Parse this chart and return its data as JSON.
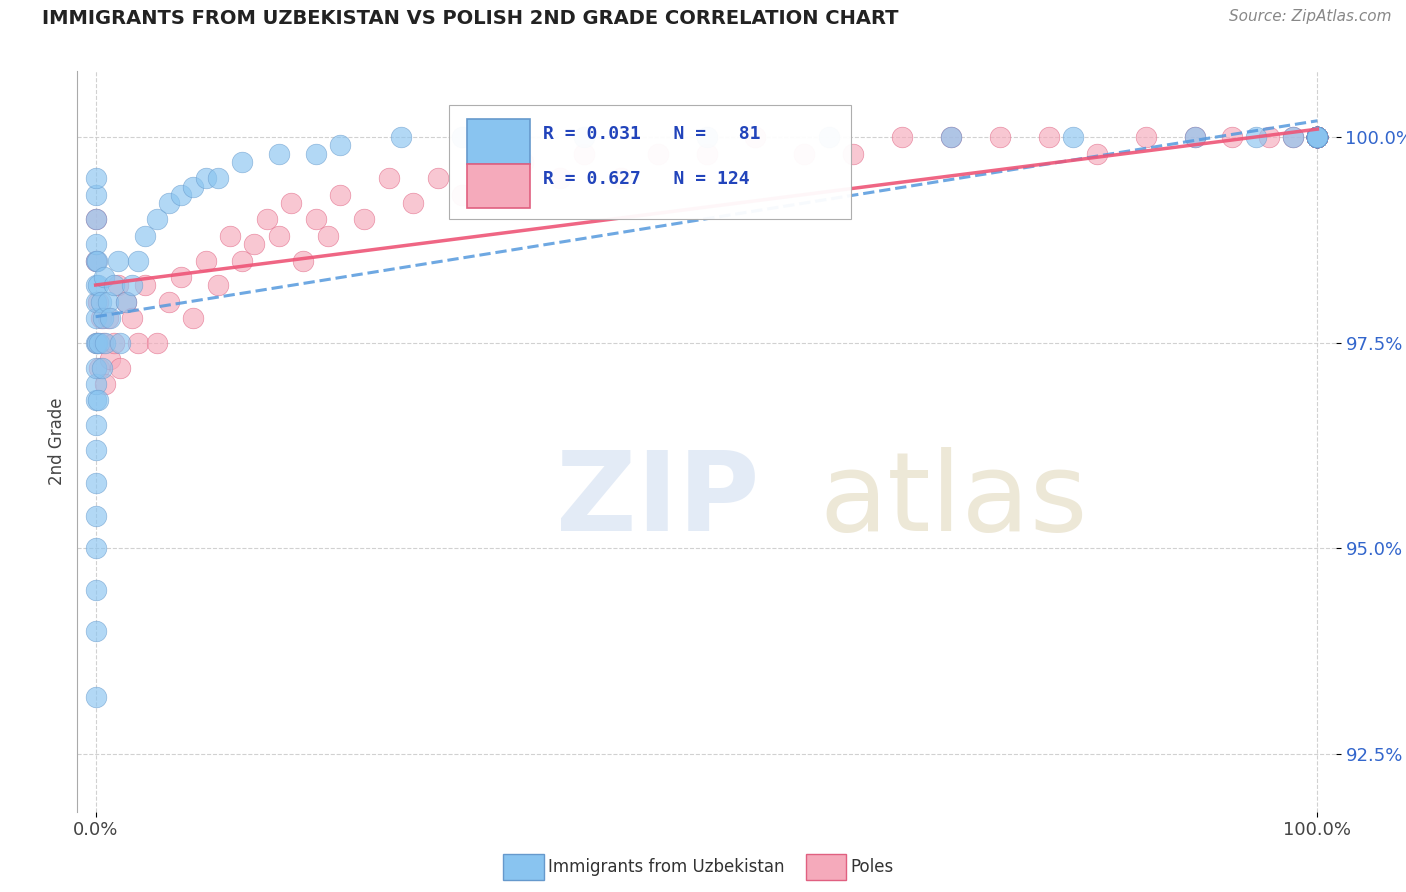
{
  "title": "IMMIGRANTS FROM UZBEKISTAN VS POLISH 2ND GRADE CORRELATION CHART",
  "source_text": "Source: ZipAtlas.com",
  "ylabel": "2nd Grade",
  "y_min": 91.8,
  "y_max": 100.8,
  "x_min": -1.5,
  "x_max": 101.5,
  "color_uzbek": "#89C4F0",
  "color_uzbek_border": "#6699CC",
  "color_poles": "#F5AABB",
  "color_poles_border": "#E06080",
  "color_uzbek_line": "#5599DD",
  "color_poles_line": "#EE5577",
  "background_color": "#ffffff",
  "grid_color": "#cccccc",
  "uzbek_x": [
    0.0,
    0.0,
    0.0,
    0.0,
    0.0,
    0.0,
    0.0,
    0.0,
    0.0,
    0.0,
    0.0,
    0.0,
    0.0,
    0.0,
    0.0,
    0.0,
    0.0,
    0.0,
    0.0,
    0.0,
    0.1,
    0.1,
    0.2,
    0.2,
    0.3,
    0.4,
    0.5,
    0.6,
    0.7,
    0.8,
    1.0,
    1.2,
    1.5,
    1.8,
    2.0,
    2.5,
    3.0,
    3.5,
    4.0,
    5.0,
    6.0,
    7.0,
    8.0,
    9.0,
    10.0,
    12.0,
    15.0,
    18.0,
    20.0,
    25.0,
    30.0,
    40.0,
    50.0,
    60.0,
    70.0,
    80.0,
    90.0,
    95.0,
    98.0,
    100.0,
    100.0,
    100.0,
    100.0,
    100.0,
    100.0,
    100.0,
    100.0,
    100.0,
    100.0,
    100.0,
    100.0,
    100.0,
    100.0,
    100.0,
    100.0,
    100.0,
    100.0,
    100.0,
    100.0,
    100.0,
    100.0
  ],
  "uzbek_y": [
    93.2,
    94.0,
    94.5,
    95.0,
    95.4,
    95.8,
    96.2,
    96.5,
    96.8,
    97.0,
    97.2,
    97.5,
    97.8,
    98.0,
    98.2,
    98.5,
    98.7,
    99.0,
    99.3,
    99.5,
    97.5,
    98.5,
    96.8,
    98.2,
    97.5,
    98.0,
    97.2,
    97.8,
    98.3,
    97.5,
    98.0,
    97.8,
    98.2,
    98.5,
    97.5,
    98.0,
    98.2,
    98.5,
    98.8,
    99.0,
    99.2,
    99.3,
    99.4,
    99.5,
    99.5,
    99.7,
    99.8,
    99.8,
    99.9,
    100.0,
    100.0,
    100.0,
    100.0,
    100.0,
    100.0,
    100.0,
    100.0,
    100.0,
    100.0,
    100.0,
    100.0,
    100.0,
    100.0,
    100.0,
    100.0,
    100.0,
    100.0,
    100.0,
    100.0,
    100.0,
    100.0,
    100.0,
    100.0,
    100.0,
    100.0,
    100.0,
    100.0,
    100.0,
    100.0,
    100.0,
    100.0
  ],
  "poles_x": [
    0.0,
    0.0,
    0.1,
    0.2,
    0.3,
    0.4,
    0.6,
    0.8,
    1.0,
    1.2,
    1.5,
    1.8,
    2.0,
    2.5,
    3.0,
    3.5,
    4.0,
    5.0,
    6.0,
    7.0,
    8.0,
    9.0,
    10.0,
    11.0,
    12.0,
    13.0,
    14.0,
    15.0,
    16.0,
    17.0,
    18.0,
    19.0,
    20.0,
    22.0,
    24.0,
    26.0,
    28.0,
    30.0,
    32.0,
    35.0,
    38.0,
    40.0,
    43.0,
    46.0,
    50.0,
    54.0,
    58.0,
    62.0,
    66.0,
    70.0,
    74.0,
    78.0,
    82.0,
    86.0,
    90.0,
    93.0,
    96.0,
    98.0,
    100.0,
    100.0,
    100.0,
    100.0,
    100.0,
    100.0,
    100.0,
    100.0,
    100.0,
    100.0,
    100.0,
    100.0,
    100.0,
    100.0,
    100.0,
    100.0,
    100.0,
    100.0,
    100.0,
    100.0,
    100.0,
    100.0,
    100.0,
    100.0,
    100.0,
    100.0,
    100.0,
    100.0,
    100.0,
    100.0,
    100.0,
    100.0,
    100.0,
    100.0,
    100.0,
    100.0,
    100.0,
    100.0,
    100.0,
    100.0,
    100.0,
    100.0,
    100.0,
    100.0,
    100.0,
    100.0,
    100.0,
    100.0,
    100.0,
    100.0,
    100.0,
    100.0,
    100.0,
    100.0,
    100.0,
    100.0
  ],
  "poles_y": [
    98.5,
    99.0,
    97.5,
    98.0,
    97.2,
    97.8,
    97.5,
    97.0,
    97.8,
    97.3,
    97.5,
    98.2,
    97.2,
    98.0,
    97.8,
    97.5,
    98.2,
    97.5,
    98.0,
    98.3,
    97.8,
    98.5,
    98.2,
    98.8,
    98.5,
    98.7,
    99.0,
    98.8,
    99.2,
    98.5,
    99.0,
    98.8,
    99.3,
    99.0,
    99.5,
    99.2,
    99.5,
    99.3,
    99.5,
    99.7,
    99.5,
    99.8,
    99.5,
    99.8,
    99.8,
    100.0,
    99.8,
    99.8,
    100.0,
    100.0,
    100.0,
    100.0,
    99.8,
    100.0,
    100.0,
    100.0,
    100.0,
    100.0,
    100.0,
    100.0,
    100.0,
    100.0,
    100.0,
    100.0,
    100.0,
    100.0,
    100.0,
    100.0,
    100.0,
    100.0,
    100.0,
    100.0,
    100.0,
    100.0,
    100.0,
    100.0,
    100.0,
    100.0,
    100.0,
    100.0,
    100.0,
    100.0,
    100.0,
    100.0,
    100.0,
    100.0,
    100.0,
    100.0,
    100.0,
    100.0,
    100.0,
    100.0,
    100.0,
    100.0,
    100.0,
    100.0,
    100.0,
    100.0,
    100.0,
    100.0,
    100.0,
    100.0,
    100.0,
    100.0,
    100.0,
    100.0,
    100.0,
    100.0,
    100.0,
    100.0,
    100.0,
    100.0,
    100.0,
    100.0
  ],
  "uzbek_trendline_x": [
    0.0,
    100.0
  ],
  "uzbek_trendline_y_start": 98.6,
  "uzbek_trendline_y_end": 99.5,
  "poles_trendline_y_start": 97.5,
  "poles_trendline_y_end": 100.0
}
